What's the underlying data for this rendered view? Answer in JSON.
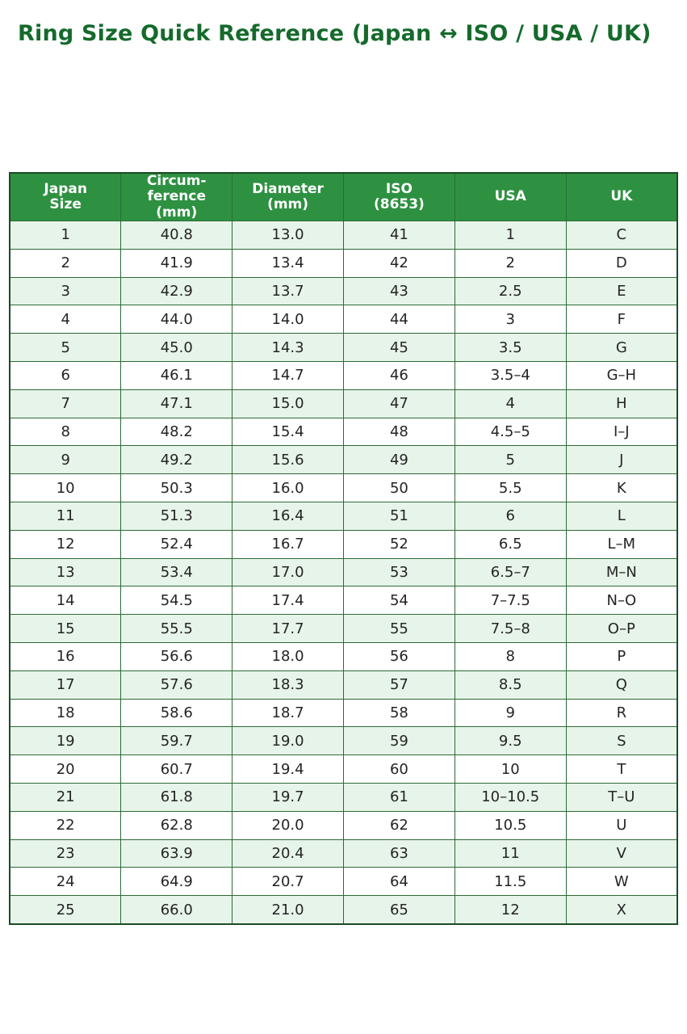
{
  "page": {
    "title": "Ring Size Quick Reference (Japan ↔ ISO / USA / UK)"
  },
  "colors": {
    "title_green": "#156a2c",
    "header_bg": "#2e9142",
    "header_text": "#ffffff",
    "row_shaded": "#e7f4ea",
    "row_plain": "#ffffff",
    "border": "#2c6b35"
  },
  "table": {
    "headers": [
      "Japan\nSize",
      "Circum-\nference\n(mm)",
      "Diameter\n(mm)",
      "ISO\n(8653)",
      "USA",
      "UK"
    ],
    "rows": [
      [
        "1",
        "40.8",
        "13.0",
        "41",
        "1",
        "C"
      ],
      [
        "2",
        "41.9",
        "13.4",
        "42",
        "2",
        "D"
      ],
      [
        "3",
        "42.9",
        "13.7",
        "43",
        "2.5",
        "E"
      ],
      [
        "4",
        "44.0",
        "14.0",
        "44",
        "3",
        "F"
      ],
      [
        "5",
        "45.0",
        "14.3",
        "45",
        "3.5",
        "G"
      ],
      [
        "6",
        "46.1",
        "14.7",
        "46",
        "3.5–4",
        "G–H"
      ],
      [
        "7",
        "47.1",
        "15.0",
        "47",
        "4",
        "H"
      ],
      [
        "8",
        "48.2",
        "15.4",
        "48",
        "4.5–5",
        "I–J"
      ],
      [
        "9",
        "49.2",
        "15.6",
        "49",
        "5",
        "J"
      ],
      [
        "10",
        "50.3",
        "16.0",
        "50",
        "5.5",
        "K"
      ],
      [
        "11",
        "51.3",
        "16.4",
        "51",
        "6",
        "L"
      ],
      [
        "12",
        "52.4",
        "16.7",
        "52",
        "6.5",
        "L–M"
      ],
      [
        "13",
        "53.4",
        "17.0",
        "53",
        "6.5–7",
        "M–N"
      ],
      [
        "14",
        "54.5",
        "17.4",
        "54",
        "7–7.5",
        "N–O"
      ],
      [
        "15",
        "55.5",
        "17.7",
        "55",
        "7.5–8",
        "O–P"
      ],
      [
        "16",
        "56.6",
        "18.0",
        "56",
        "8",
        "P"
      ],
      [
        "17",
        "57.6",
        "18.3",
        "57",
        "8.5",
        "Q"
      ],
      [
        "18",
        "58.6",
        "18.7",
        "58",
        "9",
        "R"
      ],
      [
        "19",
        "59.7",
        "19.0",
        "59",
        "9.5",
        "S"
      ],
      [
        "20",
        "60.7",
        "19.4",
        "60",
        "10",
        "T"
      ],
      [
        "21",
        "61.8",
        "19.7",
        "61",
        "10–10.5",
        "T–U"
      ],
      [
        "22",
        "62.8",
        "20.0",
        "62",
        "10.5",
        "U"
      ],
      [
        "23",
        "63.9",
        "20.4",
        "63",
        "11",
        "V"
      ],
      [
        "24",
        "64.9",
        "20.7",
        "64",
        "11.5",
        "W"
      ],
      [
        "25",
        "66.0",
        "21.0",
        "65",
        "12",
        "X"
      ]
    ]
  }
}
